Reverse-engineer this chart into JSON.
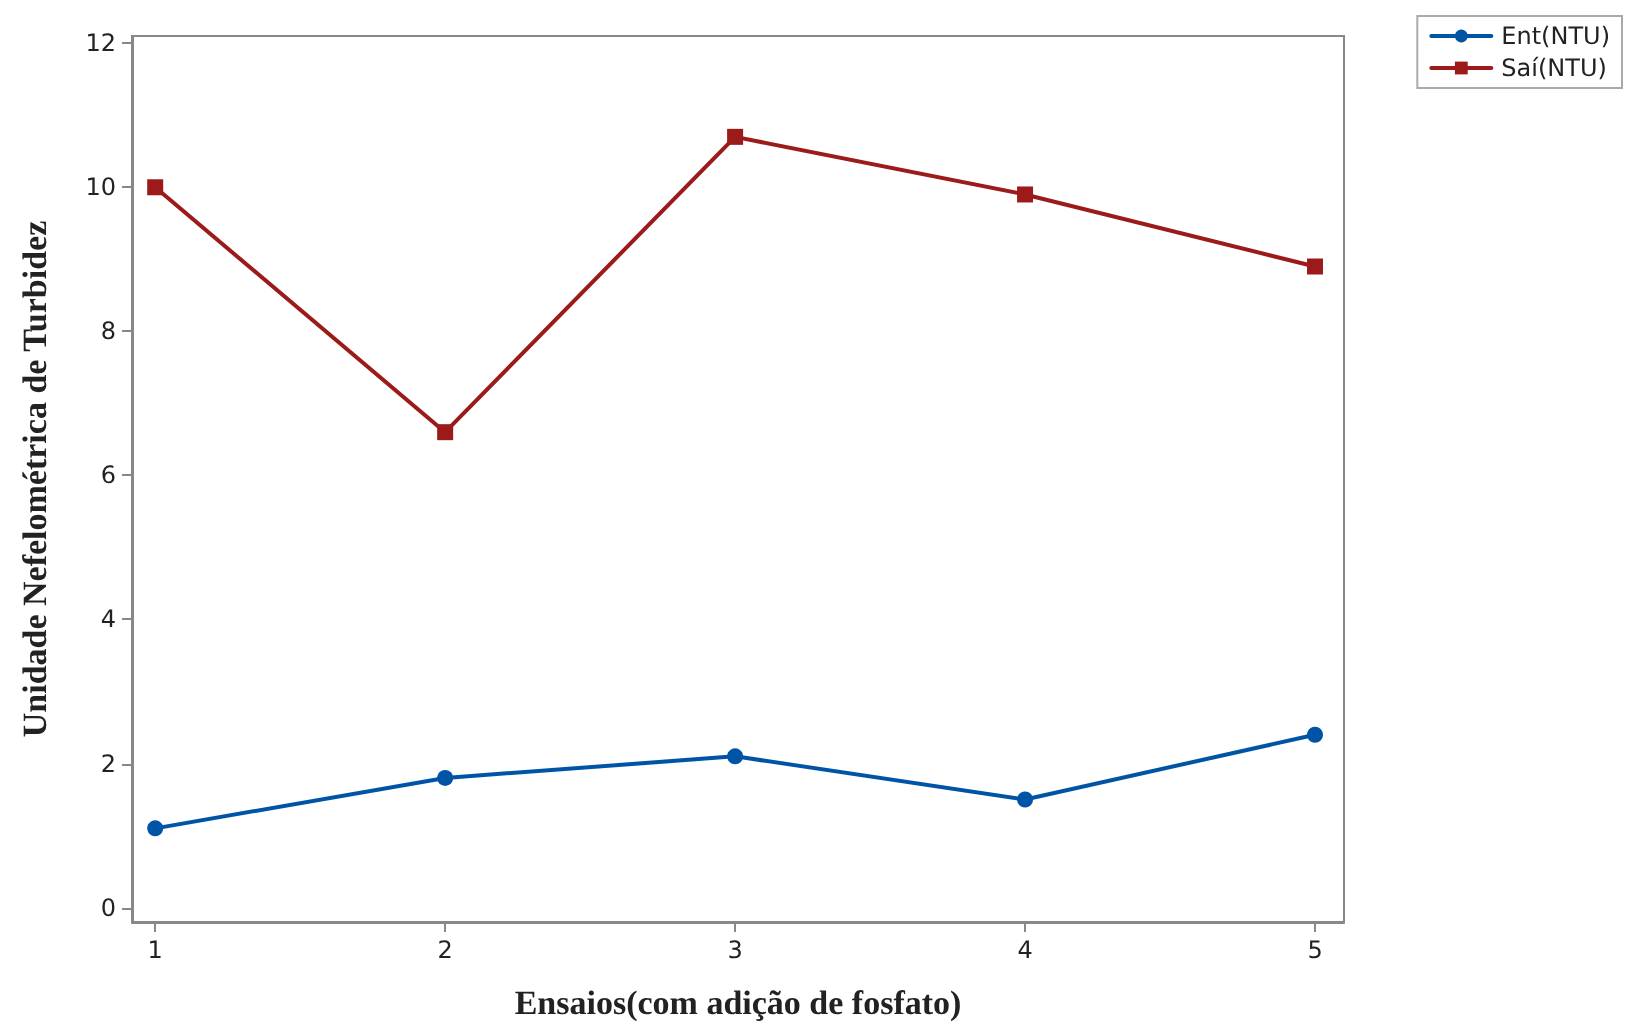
{
  "chart_data": {
    "type": "line",
    "xlabel": "Ensaios(com adição de fosfato)",
    "ylabel": "Unidade Nefelométrica de Turbidez",
    "x": [
      1,
      2,
      3,
      4,
      5
    ],
    "series": [
      {
        "name": "Ent(NTU)",
        "color": "#0054a6",
        "marker": "circle",
        "values": [
          1.1,
          1.8,
          2.1,
          1.5,
          2.4
        ]
      },
      {
        "name": "Saí(NTU)",
        "color": "#9c1a1a",
        "marker": "square",
        "values": [
          10.0,
          6.6,
          10.7,
          9.9,
          8.9
        ]
      }
    ],
    "xlim": [
      0.92,
      5.1
    ],
    "xticks": [
      1,
      2,
      3,
      4,
      5
    ],
    "ylim": [
      -0.2,
      12.1
    ],
    "yticks": [
      0,
      2,
      4,
      6,
      8,
      10,
      12
    ],
    "grid": false,
    "legend": "top right",
    "line_style": "solid"
  }
}
